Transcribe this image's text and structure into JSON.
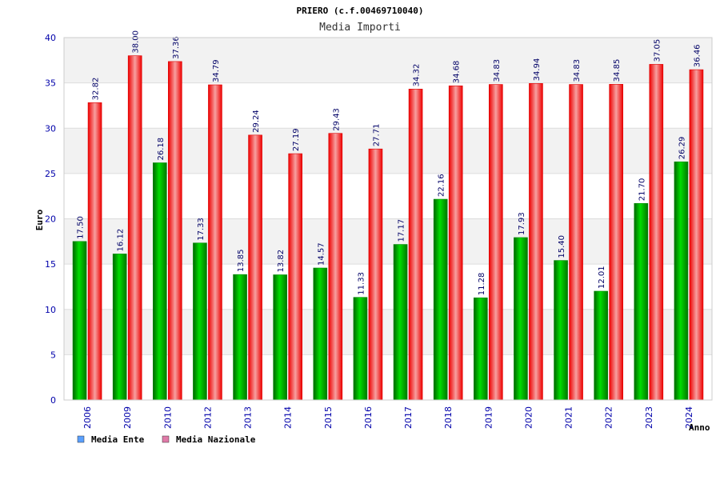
{
  "colors": {
    "ente": "#00c000",
    "nazionale": "#ff0000",
    "legend_ente": "#5aa0ff",
    "legend_nazionale": "#e07aa8",
    "band": "#f2f2f2",
    "grid": "#dddddd",
    "tick_text": "#0000aa"
  },
  "chart_data": {
    "type": "bar",
    "title": "PRIERO (c.f.00469710040)",
    "subtitle": "Media Importi",
    "xlabel": "Anno",
    "ylabel": "Euro",
    "ylim": [
      0,
      40
    ],
    "yticks": [
      0,
      5,
      10,
      15,
      20,
      25,
      30,
      35,
      40
    ],
    "grid": true,
    "legend_position": "bottom-left",
    "categories": [
      "2006",
      "2009",
      "2010",
      "2012",
      "2013",
      "2014",
      "2015",
      "2016",
      "2017",
      "2018",
      "2019",
      "2020",
      "2021",
      "2022",
      "2023",
      "2024"
    ],
    "series": [
      {
        "name": "Media Ente",
        "values": [
          17.5,
          16.12,
          26.18,
          17.33,
          13.85,
          13.82,
          14.57,
          11.33,
          17.17,
          22.16,
          11.28,
          17.93,
          15.4,
          12.01,
          21.7,
          26.29
        ],
        "labels": [
          "17.50",
          "16.12",
          "26.18",
          "17.33",
          "13.85",
          "13.82",
          "14.57",
          "11.33",
          "17.17",
          "22.16",
          "11.28",
          "17.93",
          "15.40",
          "12.01",
          "21.70",
          "26.29"
        ]
      },
      {
        "name": "Media Nazionale",
        "values": [
          32.82,
          38.0,
          37.36,
          34.79,
          29.24,
          27.19,
          29.43,
          27.71,
          34.32,
          34.68,
          34.83,
          34.94,
          34.83,
          34.85,
          37.05,
          36.46
        ],
        "labels": [
          "32.82",
          "38.00",
          "37.36",
          "34.79",
          "29.24",
          "27.19",
          "29.43",
          "27.71",
          "34.32",
          "34.68",
          "34.83",
          "34.94",
          "34.83",
          "34.85",
          "37.05",
          "36.46"
        ]
      }
    ]
  }
}
